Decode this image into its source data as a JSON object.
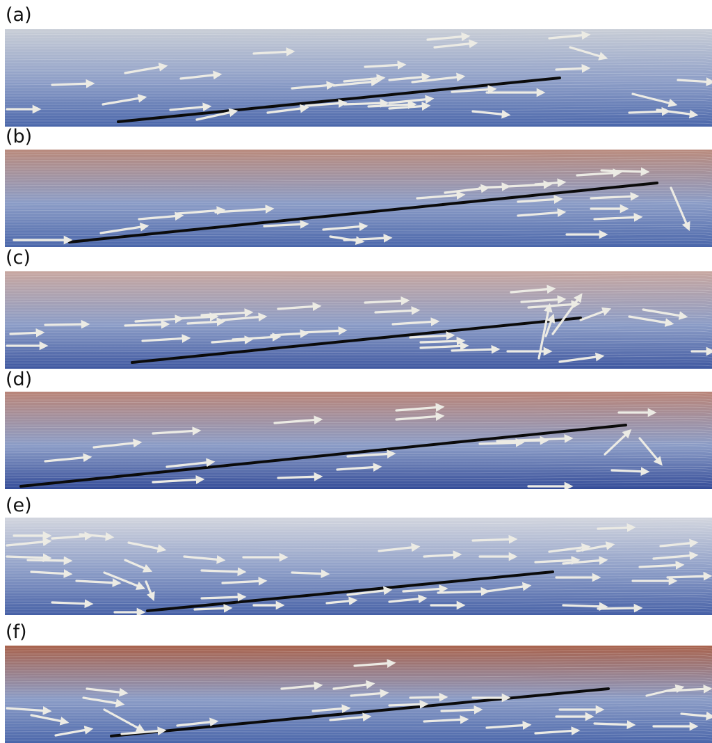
{
  "panels": [
    {
      "id": "a",
      "label": "(a)",
      "top_tint": "#c8cdd6",
      "bottom_tint": "#4a66aa",
      "plate": [
        [
          170,
          175
        ],
        [
          805,
          112
        ]
      ],
      "arrows": [
        [
          10,
          157,
          55,
          157
        ],
        [
          75,
          122,
          132,
          120
        ],
        [
          180,
          105,
          237,
          95
        ],
        [
          148,
          150,
          207,
          140
        ],
        [
          260,
          113,
          315,
          107
        ],
        [
          245,
          158,
          300,
          153
        ],
        [
          283,
          172,
          338,
          160
        ],
        [
          365,
          77,
          420,
          74
        ],
        [
          420,
          127,
          478,
          122
        ],
        [
          480,
          123,
          542,
          117
        ],
        [
          495,
          117,
          550,
          112
        ],
        [
          525,
          96,
          580,
          93
        ],
        [
          560,
          115,
          615,
          110
        ],
        [
          593,
          118,
          665,
          110
        ],
        [
          615,
          57,
          672,
          52
        ],
        [
          625,
          68,
          683,
          62
        ],
        [
          650,
          132,
          710,
          128
        ],
        [
          385,
          162,
          440,
          155
        ],
        [
          440,
          152,
          495,
          148
        ],
        [
          495,
          150,
          555,
          148
        ],
        [
          530,
          153,
          595,
          150
        ],
        [
          560,
          148,
          620,
          142
        ],
        [
          560,
          156,
          615,
          152
        ],
        [
          680,
          160,
          730,
          165
        ],
        [
          700,
          133,
          780,
          133
        ],
        [
          800,
          100,
          845,
          98
        ],
        [
          790,
          55,
          845,
          50
        ],
        [
          820,
          68,
          870,
          83
        ],
        [
          910,
          135,
          970,
          150
        ],
        [
          905,
          162,
          960,
          160
        ],
        [
          945,
          158,
          1000,
          165
        ],
        [
          975,
          115,
          1024,
          118
        ]
      ]
    },
    {
      "id": "b",
      "label": "(b)",
      "top_tint": "#b98a7c",
      "bottom_tint": "#4a66aa",
      "plate": [
        [
          100,
          348
        ],
        [
          945,
          263
        ]
      ],
      "arrows": [
        [
          20,
          345,
          100,
          345
        ],
        [
          145,
          335,
          210,
          325
        ],
        [
          200,
          315,
          260,
          310
        ],
        [
          255,
          307,
          320,
          302
        ],
        [
          310,
          305,
          390,
          300
        ],
        [
          380,
          325,
          440,
          322
        ],
        [
          465,
          330,
          525,
          325
        ],
        [
          495,
          345,
          560,
          342
        ],
        [
          475,
          340,
          520,
          347
        ],
        [
          600,
          285,
          665,
          280
        ],
        [
          640,
          277,
          700,
          270
        ],
        [
          690,
          270,
          730,
          268
        ],
        [
          730,
          268,
          790,
          265
        ],
        [
          770,
          265,
          810,
          262
        ],
        [
          745,
          290,
          805,
          286
        ],
        [
          745,
          310,
          810,
          305
        ],
        [
          830,
          252,
          890,
          248
        ],
        [
          865,
          245,
          930,
          247
        ],
        [
          850,
          285,
          915,
          282
        ],
        [
          850,
          300,
          900,
          300
        ],
        [
          855,
          315,
          920,
          312
        ],
        [
          815,
          337,
          870,
          337
        ],
        [
          965,
          270,
          990,
          328
        ]
      ]
    },
    {
      "id": "c",
      "label": "(c)",
      "top_tint": "#c7a69f",
      "bottom_tint": "#3e57a0",
      "plate": [
        [
          190,
          521
        ],
        [
          835,
          457
        ]
      ],
      "arrows": [
        [
          10,
          497,
          65,
          497
        ],
        [
          15,
          480,
          60,
          478
        ],
        [
          65,
          467,
          125,
          466
        ],
        [
          180,
          468,
          240,
          466
        ],
        [
          195,
          462,
          260,
          458
        ],
        [
          255,
          458,
          310,
          455
        ],
        [
          270,
          465,
          320,
          462
        ],
        [
          290,
          453,
          360,
          449
        ],
        [
          320,
          460,
          380,
          455
        ],
        [
          205,
          490,
          270,
          486
        ],
        [
          305,
          492,
          360,
          488
        ],
        [
          335,
          488,
          400,
          484
        ],
        [
          390,
          482,
          440,
          479
        ],
        [
          435,
          478,
          495,
          475
        ],
        [
          400,
          444,
          458,
          440
        ],
        [
          525,
          435,
          585,
          432
        ],
        [
          540,
          449,
          600,
          446
        ],
        [
          565,
          466,
          628,
          462
        ],
        [
          590,
          485,
          650,
          482
        ],
        [
          605,
          492,
          665,
          490
        ],
        [
          605,
          500,
          670,
          497
        ],
        [
          650,
          504,
          715,
          502
        ],
        [
          730,
          505,
          790,
          505
        ],
        [
          735,
          420,
          795,
          415
        ],
        [
          750,
          434,
          810,
          430
        ],
        [
          760,
          442,
          830,
          437
        ],
        [
          775,
          515,
          790,
          440
        ],
        [
          785,
          483,
          795,
          455
        ],
        [
          795,
          480,
          835,
          425
        ],
        [
          805,
          520,
          865,
          512
        ],
        [
          835,
          460,
          875,
          445
        ],
        [
          925,
          445,
          985,
          455
        ],
        [
          905,
          455,
          965,
          465
        ],
        [
          995,
          505,
          1024,
          505
        ]
      ]
    },
    {
      "id": "d",
      "label": "(d)",
      "top_tint": "#b98477",
      "bottom_tint": "#344c98",
      "plate": [
        [
          30,
          699
        ],
        [
          900,
          611
        ]
      ],
      "arrows": [
        [
          65,
          663,
          128,
          657
        ],
        [
          135,
          643,
          200,
          636
        ],
        [
          220,
          623,
          285,
          619
        ],
        [
          240,
          671,
          305,
          664
        ],
        [
          220,
          693,
          290,
          689
        ],
        [
          395,
          608,
          460,
          603
        ],
        [
          400,
          687,
          460,
          685
        ],
        [
          485,
          675,
          545,
          671
        ],
        [
          500,
          656,
          565,
          652
        ],
        [
          570,
          590,
          635,
          585
        ],
        [
          570,
          603,
          635,
          598
        ],
        [
          690,
          638,
          750,
          636
        ],
        [
          715,
          634,
          785,
          633
        ],
        [
          745,
          633,
          820,
          630
        ],
        [
          760,
          699,
          820,
          699
        ],
        [
          890,
          593,
          940,
          593
        ],
        [
          920,
          630,
          950,
          666
        ],
        [
          870,
          653,
          905,
          620
        ],
        [
          880,
          676,
          930,
          678
        ]
      ]
    },
    {
      "id": "e",
      "label": "(e)",
      "top_tint": "#d2d5de",
      "bottom_tint": "#4660a6",
      "plate": [
        [
          212,
          878
        ],
        [
          795,
          822
        ]
      ],
      "arrows": [
        [
          10,
          784,
          70,
          778
        ],
        [
          10,
          800,
          70,
          802
        ],
        [
          75,
          774,
          130,
          770
        ],
        [
          20,
          770,
          70,
          770
        ],
        [
          40,
          805,
          100,
          806
        ],
        [
          45,
          822,
          100,
          825
        ],
        [
          115,
          768,
          160,
          772
        ],
        [
          110,
          835,
          170,
          838
        ],
        [
          185,
          780,
          235,
          790
        ],
        [
          180,
          805,
          215,
          820
        ],
        [
          210,
          836,
          220,
          860
        ],
        [
          150,
          823,
          205,
          845
        ],
        [
          265,
          800,
          320,
          805
        ],
        [
          290,
          820,
          350,
          822
        ],
        [
          320,
          838,
          380,
          835
        ],
        [
          350,
          801,
          410,
          801
        ],
        [
          420,
          823,
          470,
          825
        ],
        [
          545,
          792,
          600,
          786
        ],
        [
          610,
          800,
          660,
          797
        ],
        [
          680,
          777,
          740,
          775
        ],
        [
          690,
          800,
          740,
          800
        ],
        [
          770,
          808,
          830,
          805
        ],
        [
          790,
          793,
          845,
          786
        ],
        [
          800,
          830,
          860,
          830
        ],
        [
          810,
          810,
          870,
          805
        ],
        [
          830,
          792,
          880,
          783
        ],
        [
          860,
          760,
          910,
          758
        ],
        [
          910,
          835,
          970,
          835
        ],
        [
          920,
          815,
          980,
          812
        ],
        [
          950,
          785,
          1000,
          780
        ],
        [
          940,
          803,
          1000,
          798
        ],
        [
          960,
          830,
          1020,
          828
        ],
        [
          810,
          870,
          870,
          872
        ],
        [
          860,
          875,
          920,
          874
        ],
        [
          75,
          866,
          130,
          868
        ],
        [
          165,
          880,
          205,
          880
        ],
        [
          290,
          860,
          350,
          858
        ],
        [
          280,
          876,
          330,
          874
        ],
        [
          365,
          870,
          405,
          870
        ],
        [
          470,
          867,
          510,
          863
        ],
        [
          560,
          865,
          610,
          860
        ],
        [
          620,
          870,
          665,
          870
        ],
        [
          500,
          855,
          560,
          848
        ],
        [
          580,
          850,
          640,
          846
        ],
        [
          630,
          852,
          700,
          850
        ],
        [
          700,
          850,
          760,
          842
        ]
      ]
    },
    {
      "id": "f",
      "label": "(f)",
      "top_tint": "#a8624c",
      "bottom_tint": "#4a66aa",
      "plate": [
        [
          160,
          1058
        ],
        [
          875,
          990
        ]
      ],
      "arrows": [
        [
          10,
          1018,
          70,
          1022
        ],
        [
          45,
          1028,
          95,
          1038
        ],
        [
          80,
          1057,
          130,
          1048
        ],
        [
          125,
          990,
          180,
          996
        ],
        [
          120,
          1003,
          175,
          1012
        ],
        [
          150,
          1020,
          205,
          1050
        ],
        [
          175,
          1055,
          235,
          1050
        ],
        [
          255,
          1043,
          310,
          1037
        ],
        [
          405,
          990,
          460,
          985
        ],
        [
          480,
          990,
          535,
          983
        ],
        [
          505,
          1000,
          555,
          996
        ],
        [
          510,
          957,
          565,
          953
        ],
        [
          560,
          1014,
          612,
          1012
        ],
        [
          590,
          1003,
          640,
          1002
        ],
        [
          635,
          1022,
          690,
          1020
        ],
        [
          610,
          1037,
          670,
          1034
        ],
        [
          475,
          1035,
          530,
          1030
        ],
        [
          450,
          1022,
          500,
          1018
        ],
        [
          680,
          1003,
          730,
          1003
        ],
        [
          700,
          1046,
          760,
          1042
        ],
        [
          770,
          1054,
          830,
          1050
        ],
        [
          805,
          1020,
          865,
          1020
        ],
        [
          800,
          1030,
          850,
          1030
        ],
        [
          855,
          1040,
          910,
          1042
        ],
        [
          940,
          1044,
          1000,
          1044
        ],
        [
          960,
          993,
          1020,
          990
        ],
        [
          930,
          1000,
          980,
          988
        ],
        [
          980,
          1026,
          1024,
          1030
        ]
      ]
    }
  ]
}
